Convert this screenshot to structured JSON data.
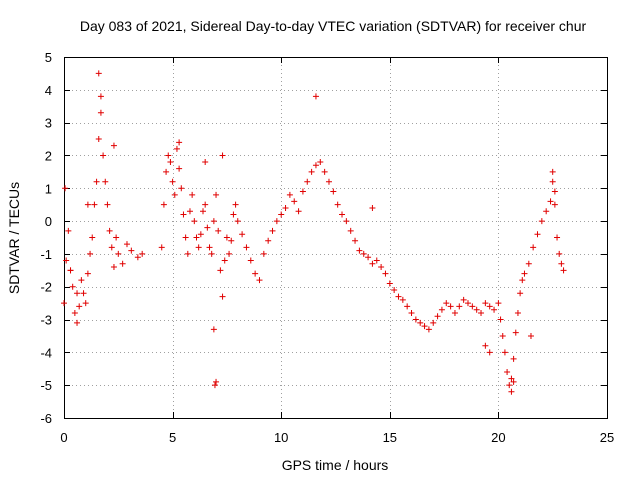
{
  "chart_data": {
    "type": "scatter",
    "title": "Day 083 of 2021, Sidereal Day-to-day VTEC variation (SDTVAR) for receiver chur",
    "xlabel": "GPS time / hours",
    "ylabel": "SDTVAR / TECUs",
    "xlim": [
      0,
      25
    ],
    "ylim": [
      -6,
      5
    ],
    "x_ticks": [
      "0",
      "5",
      "10",
      "15",
      "20",
      "25"
    ],
    "y_ticks": [
      "-6",
      "-5",
      "-4",
      "-3",
      "-2",
      "-1",
      "0",
      "1",
      "2",
      "3",
      "4",
      "5"
    ],
    "grid": true,
    "marker": "plus",
    "color": "#e00000",
    "series": [
      {
        "name": "SDTVAR",
        "x": [
          0.0,
          0.1,
          0.2,
          0.3,
          0.4,
          0.5,
          0.6,
          0.7,
          0.8,
          0.9,
          1.0,
          1.1,
          1.2,
          1.3,
          1.4,
          1.5,
          1.6,
          1.7,
          1.8,
          1.9,
          2.0,
          2.1,
          2.2,
          2.3,
          2.4,
          2.5,
          2.7,
          2.9,
          3.1,
          3.4,
          3.6,
          4.5,
          4.6,
          4.7,
          4.8,
          4.9,
          5.0,
          5.1,
          5.2,
          5.3,
          5.4,
          5.5,
          5.6,
          5.7,
          5.8,
          5.9,
          6.0,
          6.1,
          6.2,
          6.3,
          6.4,
          6.5,
          6.6,
          6.7,
          6.8,
          6.9,
          7.0,
          7.1,
          7.2,
          7.3,
          7.4,
          7.5,
          7.6,
          7.7,
          7.8,
          7.9,
          8.0,
          8.2,
          8.4,
          8.6,
          8.8,
          9.0,
          9.2,
          9.4,
          9.6,
          9.8,
          10.0,
          10.2,
          10.4,
          10.6,
          10.8,
          11.0,
          11.2,
          11.4,
          11.6,
          11.8,
          12.0,
          12.2,
          12.4,
          12.6,
          12.8,
          13.0,
          13.2,
          13.4,
          13.6,
          13.8,
          14.0,
          14.2,
          14.4,
          14.6,
          14.8,
          15.0,
          15.2,
          15.4,
          15.6,
          15.8,
          16.0,
          16.2,
          16.4,
          16.6,
          16.8,
          17.0,
          17.2,
          17.4,
          17.6,
          17.8,
          18.0,
          18.2,
          18.4,
          18.6,
          18.8,
          19.0,
          19.2,
          19.4,
          19.6,
          19.8,
          20.0,
          20.1,
          20.2,
          20.3,
          20.4,
          20.5,
          20.6,
          20.7,
          20.8,
          20.9,
          21.0,
          21.1,
          21.2,
          21.4,
          21.6,
          21.8,
          22.0,
          22.2,
          22.4,
          22.5,
          22.6,
          22.7,
          22.8,
          22.9,
          23.0,
          0.05,
          0.3,
          0.6,
          1.1,
          1.6,
          1.7,
          2.3,
          5.3,
          6.5,
          6.9,
          6.95,
          7.0,
          7.3,
          11.6,
          14.2,
          19.4,
          19.6,
          20.6,
          20.7,
          21.5,
          22.5,
          22.6
        ],
        "y": [
          -2.5,
          -1.2,
          -0.3,
          -1.5,
          -2.0,
          -2.8,
          -3.1,
          -2.6,
          -1.8,
          -2.2,
          -2.5,
          -1.6,
          -1.0,
          -0.5,
          0.5,
          1.2,
          2.5,
          3.8,
          2.0,
          1.2,
          0.5,
          -0.3,
          -0.8,
          -1.4,
          -0.5,
          -1.0,
          -1.3,
          -0.7,
          -0.9,
          -1.1,
          -1.0,
          -0.8,
          0.5,
          1.5,
          2.0,
          1.8,
          1.2,
          0.8,
          2.2,
          1.6,
          1.0,
          0.2,
          -0.5,
          -1.0,
          0.3,
          0.8,
          0.0,
          -0.5,
          -0.8,
          -0.4,
          0.3,
          0.5,
          -0.2,
          -0.8,
          -1.0,
          0.0,
          0.8,
          -0.3,
          -1.5,
          -2.3,
          -1.2,
          -0.5,
          -1.0,
          -0.6,
          0.2,
          0.5,
          0.0,
          -0.4,
          -0.8,
          -1.2,
          -1.6,
          -1.8,
          -1.0,
          -0.6,
          -0.3,
          0.0,
          0.2,
          0.4,
          0.8,
          0.6,
          0.3,
          0.9,
          1.2,
          1.5,
          1.7,
          1.8,
          1.5,
          1.2,
          0.9,
          0.5,
          0.2,
          0.0,
          -0.3,
          -0.6,
          -0.9,
          -1.0,
          -1.1,
          -1.3,
          -1.2,
          -1.4,
          -1.6,
          -1.9,
          -2.1,
          -2.3,
          -2.4,
          -2.6,
          -2.8,
          -3.0,
          -3.1,
          -3.2,
          -3.3,
          -3.1,
          -2.9,
          -2.7,
          -2.5,
          -2.6,
          -2.8,
          -2.6,
          -2.4,
          -2.5,
          -2.6,
          -2.7,
          -2.8,
          -2.5,
          -2.6,
          -2.7,
          -2.5,
          -3.0,
          -3.5,
          -4.0,
          -4.6,
          -5.0,
          -4.8,
          -4.2,
          -3.4,
          -2.8,
          -2.2,
          -1.8,
          -1.6,
          -1.3,
          -0.8,
          -0.4,
          0.0,
          0.3,
          0.6,
          1.2,
          0.5,
          -0.5,
          -1.0,
          -1.3,
          -1.5,
          1.0,
          -1.5,
          -2.2,
          0.5,
          4.5,
          3.3,
          2.3,
          2.4,
          1.8,
          -3.3,
          -5.0,
          -4.9,
          2.0,
          3.8,
          0.4,
          -3.8,
          -4.0,
          -5.2,
          -4.9,
          -3.5,
          1.5,
          0.9
        ]
      }
    ]
  }
}
